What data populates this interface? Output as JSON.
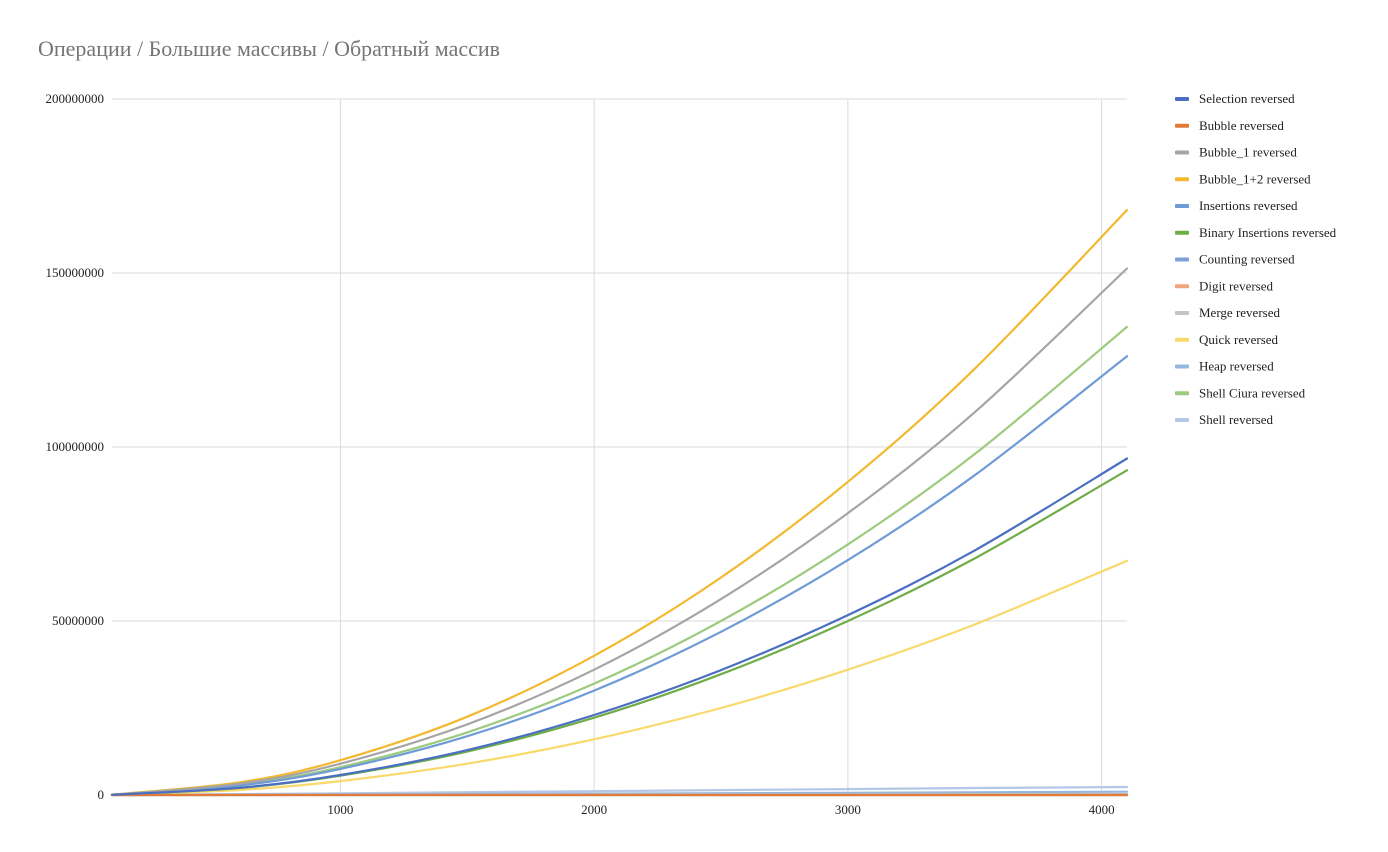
{
  "chart_data": {
    "type": "line",
    "title": "Операции / Большие массивы / Обратный массив",
    "xlabel": "",
    "ylabel": "",
    "xlim": [
      100,
      4100
    ],
    "ylim": [
      0,
      200000000
    ],
    "x_ticks": [
      1000,
      2000,
      3000,
      4000
    ],
    "y_ticks": [
      0,
      50000000,
      100000000,
      150000000,
      200000000
    ],
    "x_tick_labels": [
      "1000",
      "2000",
      "3000",
      "4000"
    ],
    "y_tick_labels": [
      "0",
      "50000000",
      "100000000",
      "150000000",
      "200000000"
    ],
    "grid": true,
    "legend_position": "right",
    "x": [
      100,
      600,
      1000,
      1500,
      2000,
      2500,
      3000,
      3500,
      4100
    ],
    "series": [
      {
        "name": "Selection reversed",
        "color": "#4a6fc1",
        "values": [
          57000,
          2060000,
          5750000,
          12900000,
          23000000,
          35900000,
          51700000,
          70300000,
          96700000
        ]
      },
      {
        "name": "Bubble reversed",
        "color": "#e07b39",
        "values": [
          0,
          0,
          0,
          0,
          0,
          0,
          0,
          0,
          0
        ]
      },
      {
        "name": "Bubble_1 reversed",
        "color": "#a5a5a5",
        "values": [
          90000,
          3240000,
          9000000,
          20300000,
          36000000,
          56300000,
          81000000,
          110000000,
          151300000
        ]
      },
      {
        "name": "Bubble_1+2 reversed",
        "color": "#f2b92f",
        "values": [
          100000,
          3600000,
          10000000,
          22500000,
          40000000,
          62500000,
          90000000,
          122500000,
          168100000
        ]
      },
      {
        "name": "Insertions reversed",
        "color": "#6f9bd6",
        "values": [
          75000,
          2700000,
          7500000,
          16900000,
          30000000,
          46900000,
          67500000,
          91900000,
          126100000
        ]
      },
      {
        "name": "Binary Insertions reversed",
        "color": "#70ad47",
        "values": [
          55000,
          2000000,
          5550000,
          12500000,
          22200000,
          34700000,
          50000000,
          68000000,
          93300000
        ]
      },
      {
        "name": "Counting reversed",
        "color": "#7f9fd8",
        "values": [
          0,
          0,
          0,
          0,
          0,
          0,
          0,
          0,
          0
        ]
      },
      {
        "name": "Digit reversed",
        "color": "#f0a47a",
        "values": [
          0,
          0,
          0,
          0,
          0,
          0,
          0,
          0,
          0
        ]
      },
      {
        "name": "Merge reversed",
        "color": "#c4c4c4",
        "values": [
          5000,
          35000,
          60000,
          95000,
          130000,
          170000,
          210000,
          250000,
          300000
        ]
      },
      {
        "name": "Quick reversed",
        "color": "#f9d96b",
        "values": [
          40000,
          1450000,
          4000000,
          9000000,
          16000000,
          25000000,
          36000000,
          49000000,
          67300000
        ]
      },
      {
        "name": "Heap reversed",
        "color": "#95b8e0",
        "values": [
          10000,
          100000,
          180000,
          290000,
          400000,
          520000,
          640000,
          770000,
          950000
        ]
      },
      {
        "name": "Shell Ciura reversed",
        "color": "#9ccb7f",
        "values": [
          80000,
          2880000,
          8000000,
          18000000,
          32000000,
          50000000,
          72000000,
          98000000,
          134500000
        ]
      },
      {
        "name": "Shell reversed",
        "color": "#b4c7e7",
        "values": [
          20000,
          250000,
          500000,
          800000,
          1100000,
          1400000,
          1700000,
          2000000,
          2300000
        ]
      }
    ]
  }
}
